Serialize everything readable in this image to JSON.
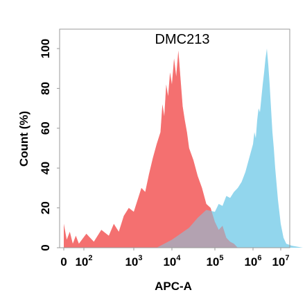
{
  "chart_data": {
    "type": "area",
    "title": "DMC213",
    "xlabel": "APC-A",
    "ylabel": "Count  (%)",
    "x_scale": "biexponential",
    "x_ticks": [
      {
        "base": "0",
        "exp": ""
      },
      {
        "base": "10",
        "exp": "2"
      },
      {
        "base": "10",
        "exp": "3"
      },
      {
        "base": "10",
        "exp": "4"
      },
      {
        "base": "10",
        "exp": "5"
      },
      {
        "base": "10",
        "exp": "6"
      },
      {
        "base": "10",
        "exp": "7"
      }
    ],
    "y_ticks": [
      "0",
      "20",
      "40",
      "60",
      "80",
      "100"
    ],
    "ylim": [
      0,
      100
    ],
    "grid": false,
    "series": [
      {
        "color": "#f46b6b",
        "points": [
          [
            0,
            12
          ],
          [
            0.15,
            4
          ],
          [
            0.3,
            8
          ],
          [
            0.45,
            2
          ],
          [
            0.6,
            6
          ],
          [
            0.75,
            2
          ],
          [
            0.9,
            4
          ],
          [
            1.05,
            7
          ],
          [
            1.2,
            3
          ],
          [
            1.35,
            9
          ],
          [
            1.5,
            6
          ],
          [
            1.6,
            12
          ],
          [
            1.7,
            8
          ],
          [
            1.8,
            16
          ],
          [
            1.9,
            20
          ],
          [
            2.0,
            18
          ],
          [
            2.1,
            24
          ],
          [
            2.2,
            30
          ],
          [
            2.3,
            28
          ],
          [
            2.4,
            37
          ],
          [
            2.5,
            45
          ],
          [
            2.6,
            52
          ],
          [
            2.7,
            58
          ],
          [
            2.75,
            72
          ],
          [
            2.8,
            66
          ],
          [
            2.85,
            82
          ],
          [
            2.9,
            76
          ],
          [
            2.95,
            88
          ],
          [
            3.0,
            82
          ],
          [
            3.05,
            95
          ],
          [
            3.1,
            86
          ],
          [
            3.15,
            99
          ],
          [
            3.2,
            85
          ],
          [
            3.25,
            71
          ],
          [
            3.3,
            64
          ],
          [
            3.35,
            58
          ],
          [
            3.4,
            50
          ],
          [
            3.5,
            44
          ],
          [
            3.6,
            36
          ],
          [
            3.7,
            30
          ],
          [
            3.8,
            22
          ],
          [
            3.9,
            20
          ],
          [
            4.0,
            13
          ],
          [
            4.1,
            9
          ],
          [
            4.2,
            11
          ],
          [
            4.3,
            5
          ],
          [
            4.4,
            3
          ],
          [
            4.5,
            2
          ],
          [
            4.6,
            0
          ]
        ]
      },
      {
        "color": "#7fcfea",
        "points": [
          [
            2.6,
            0
          ],
          [
            2.8,
            2
          ],
          [
            3.0,
            4
          ],
          [
            3.2,
            7
          ],
          [
            3.4,
            10
          ],
          [
            3.6,
            15
          ],
          [
            3.8,
            19
          ],
          [
            4.0,
            18
          ],
          [
            4.1,
            22
          ],
          [
            4.2,
            21
          ],
          [
            4.3,
            26
          ],
          [
            4.4,
            25
          ],
          [
            4.5,
            28
          ],
          [
            4.6,
            30
          ],
          [
            4.7,
            33
          ],
          [
            4.8,
            38
          ],
          [
            4.9,
            45
          ],
          [
            5.0,
            52
          ],
          [
            5.05,
            58
          ],
          [
            5.1,
            55
          ],
          [
            5.15,
            64
          ],
          [
            5.2,
            70
          ],
          [
            5.25,
            68
          ],
          [
            5.3,
            75
          ],
          [
            5.35,
            82
          ],
          [
            5.4,
            88
          ],
          [
            5.45,
            95
          ],
          [
            5.5,
            100
          ],
          [
            5.55,
            92
          ],
          [
            5.6,
            82
          ],
          [
            5.65,
            70
          ],
          [
            5.7,
            58
          ],
          [
            5.75,
            50
          ],
          [
            5.8,
            40
          ],
          [
            5.9,
            24
          ],
          [
            6.0,
            12
          ],
          [
            6.1,
            5
          ],
          [
            6.2,
            2
          ],
          [
            6.4,
            1
          ],
          [
            6.8,
            0
          ]
        ]
      }
    ]
  }
}
